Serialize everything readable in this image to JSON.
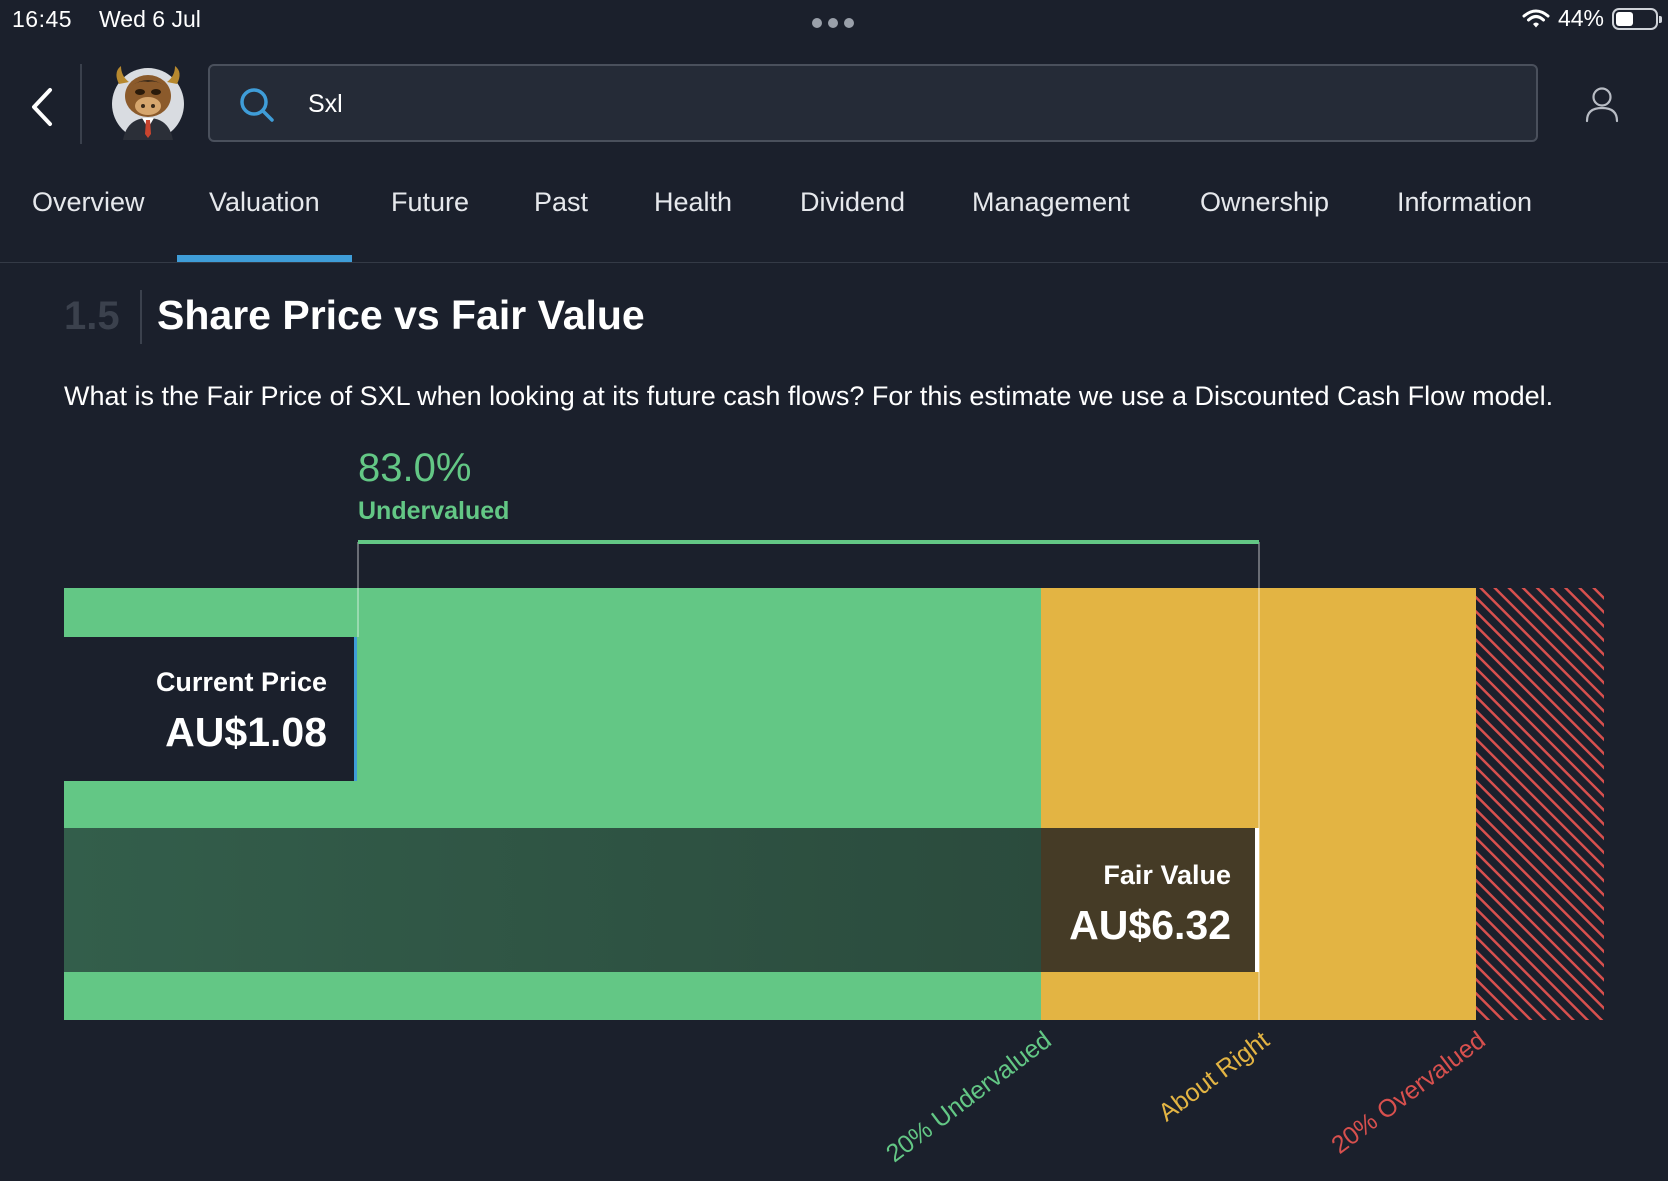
{
  "status_bar": {
    "time": "16:45",
    "date": "Wed 6 Jul",
    "battery_text": "44%",
    "battery_level": 0.44
  },
  "header": {
    "back_icon": "chevron-left-icon",
    "avatar_icon": "bull-mascot-avatar",
    "search": {
      "value": "Sxl",
      "icon": "search-icon"
    },
    "user_icon": "user-icon"
  },
  "tabs": [
    {
      "label": "Overview"
    },
    {
      "label": "Valuation",
      "active": true
    },
    {
      "label": "Future"
    },
    {
      "label": "Past"
    },
    {
      "label": "Health"
    },
    {
      "label": "Dividend"
    },
    {
      "label": "Management"
    },
    {
      "label": "Ownership"
    },
    {
      "label": "Information"
    }
  ],
  "section": {
    "number": "1.5",
    "title": "Share Price vs Fair Value",
    "description": "What is the Fair Price of SXL when looking at its future cash flows? For this estimate we use a Discounted Cash Flow model."
  },
  "colors": {
    "background": "#1b202c",
    "undervalued": "#63c785",
    "about_right": "#e3b443",
    "overvalued": "#d8504e",
    "accent": "#3f9dd8"
  },
  "chart_data": {
    "type": "bar",
    "discount": {
      "value": "83.0%",
      "label": "Undervalued"
    },
    "current_price": {
      "label": "Current Price",
      "value": "AU$1.08",
      "amount": 1.08
    },
    "fair_value": {
      "label": "Fair Value",
      "value": "AU$6.32",
      "amount": 6.32
    },
    "zones": [
      {
        "label": "20% Undervalued",
        "color": "#63c785"
      },
      {
        "label": "About Right",
        "color": "#e3b443"
      },
      {
        "label": "20% Overvalued",
        "color": "#d8504e"
      }
    ]
  }
}
